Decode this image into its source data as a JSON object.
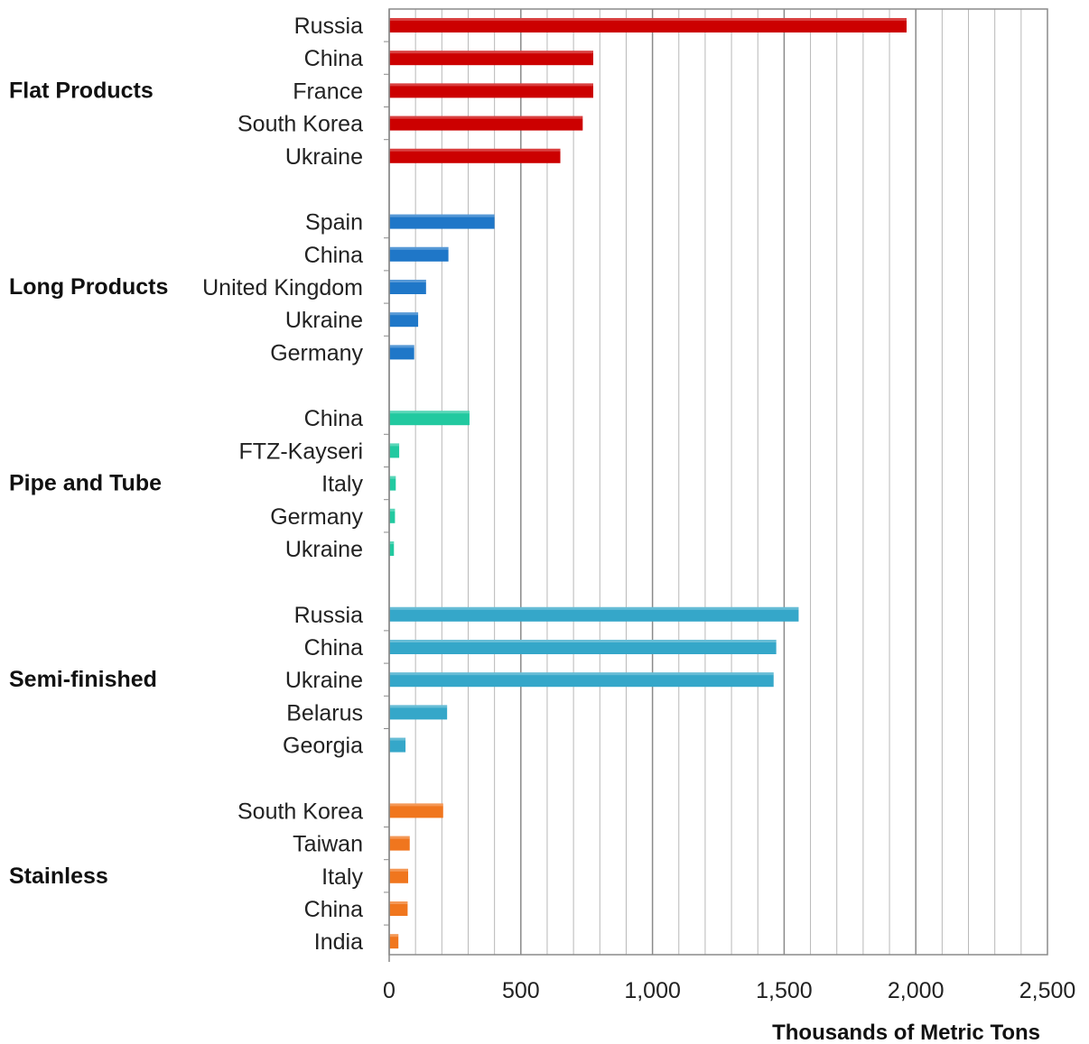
{
  "chart_data": {
    "type": "bar",
    "orientation": "horizontal",
    "xlabel": "Thousands of Metric Tons",
    "xlim": [
      0,
      2500
    ],
    "x_ticks": [
      0,
      500,
      1000,
      1500,
      2000,
      2500
    ],
    "x_tick_labels": [
      "0",
      "500",
      "1,000",
      "1,500",
      "2,000",
      "2,500"
    ],
    "grid": true,
    "groups": [
      {
        "name": "Flat Products",
        "color": "#cc0000",
        "categories": [
          "Russia",
          "China",
          "France",
          "South Korea",
          "Ukraine"
        ],
        "values": [
          1965,
          775,
          775,
          735,
          650
        ]
      },
      {
        "name": "Long Products",
        "color": "#1f77c8",
        "categories": [
          "Spain",
          "China",
          "United Kingdom",
          "Ukraine",
          "Germany"
        ],
        "values": [
          400,
          225,
          140,
          110,
          95
        ]
      },
      {
        "name": "Pipe and Tube",
        "color": "#22c9a0",
        "categories": [
          "China",
          "FTZ-Kayseri",
          "Italy",
          "Germany",
          "Ukraine"
        ],
        "values": [
          305,
          38,
          25,
          22,
          18
        ]
      },
      {
        "name": "Semi-finished",
        "color": "#35a7c9",
        "categories": [
          "Russia",
          "China",
          "Ukraine",
          "Belarus",
          "Georgia"
        ],
        "values": [
          1555,
          1470,
          1460,
          220,
          62
        ]
      },
      {
        "name": "Stainless",
        "color": "#f0761e",
        "categories": [
          "South Korea",
          "Taiwan",
          "Italy",
          "China",
          "India"
        ],
        "values": [
          205,
          78,
          72,
          70,
          35
        ]
      }
    ]
  }
}
